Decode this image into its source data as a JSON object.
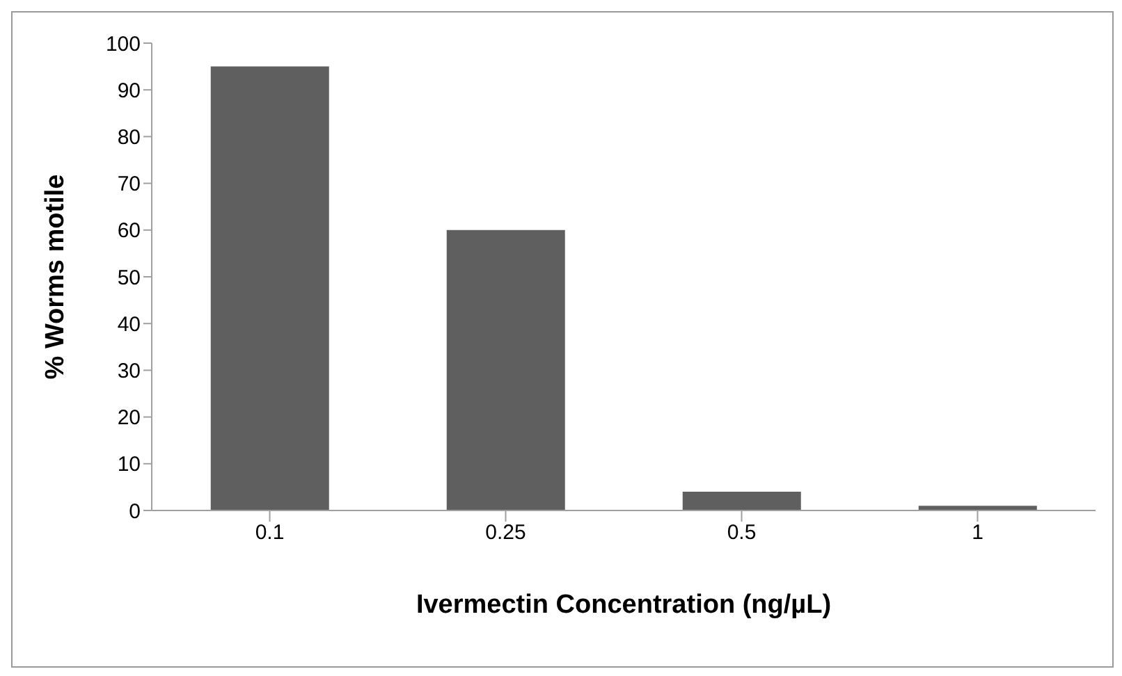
{
  "chart_data": {
    "type": "bar",
    "xlabel": "Ivermectin Concentration (ng/µL)",
    "ylabel": "% Worms motile",
    "categories": [
      "0.1",
      "0.25",
      "0.5",
      "1"
    ],
    "values": [
      95,
      60,
      4,
      1
    ],
    "color": "#5f5f5f",
    "ylim": [
      0,
      100
    ],
    "yticks": [
      0,
      10,
      20,
      30,
      40,
      50,
      60,
      70,
      80,
      90,
      100
    ],
    "grid": false,
    "legend": false
  }
}
